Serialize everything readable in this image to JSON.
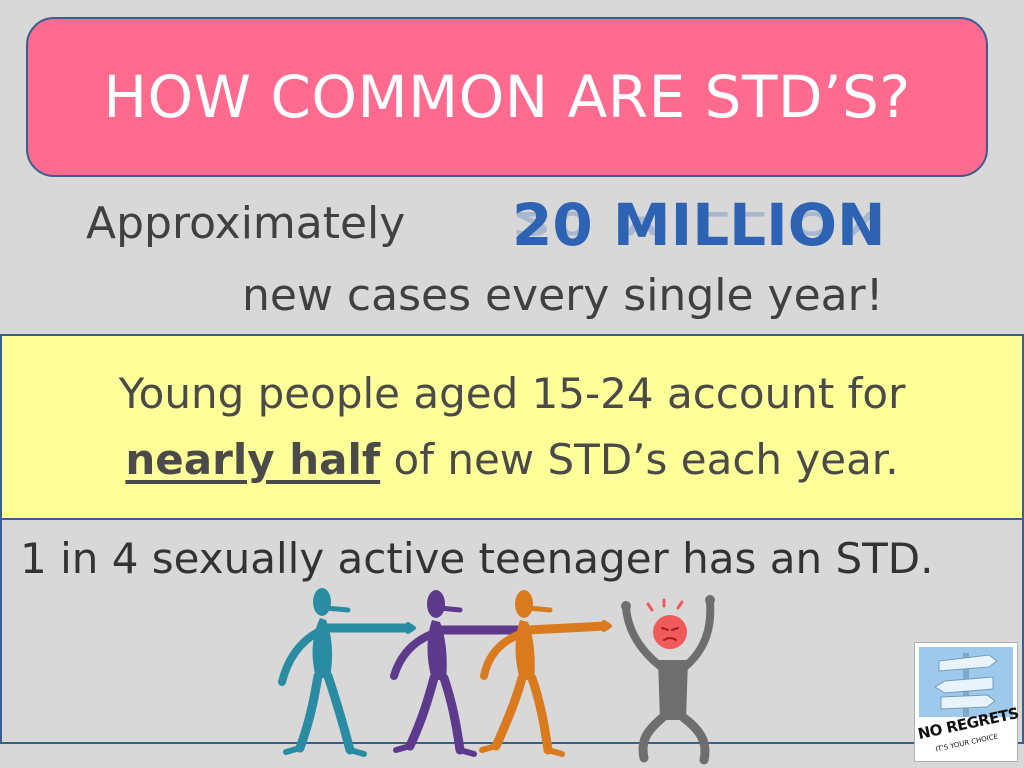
{
  "title": "HOW COMMON ARE STD’S?",
  "stat": {
    "prefix": "Approximately",
    "number": "20 MILLION",
    "suffix": "new cases every single year!"
  },
  "highlight": {
    "line1": "Young people aged 15-24 account for",
    "emphasis": "nearly half",
    "line2_rest": " of new STD’s each year."
  },
  "fact": "1 in 4 sexually active teenager has an STD.",
  "logo": {
    "text": "NO REGRETS",
    "tagline": "IT'S YOUR CHOICE"
  },
  "colors": {
    "title_bg": "#fe6b8f",
    "highlight_bg": "#ffff99",
    "number": "#2e63b3",
    "figure_teal": "#2a8ca3",
    "figure_purple": "#5e3a8c",
    "figure_orange": "#d97a1f",
    "figure_gray": "#6e6e6e",
    "figure_head_red": "#f05a5a"
  }
}
